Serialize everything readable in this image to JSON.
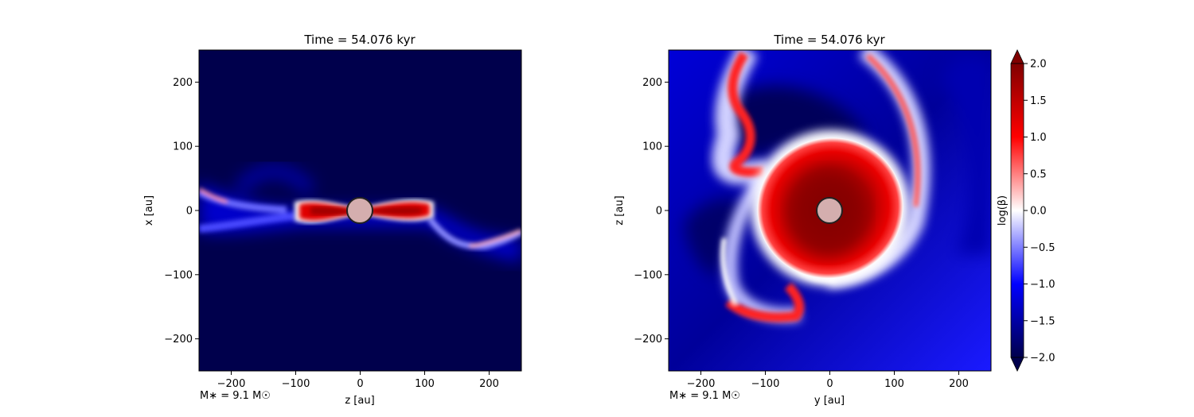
{
  "colormap": {
    "stops": [
      "#00004c",
      "#0000ff",
      "#ffffff",
      "#ff0000",
      "#800000"
    ],
    "star_fill": "#d4aeae",
    "star_stroke": "#222222"
  },
  "chart_data": [
    {
      "type": "heatmap",
      "title": "Time = 54.076 kyr",
      "xlabel": "z [au]",
      "ylabel": "x [au]",
      "xlim": [
        -250,
        250
      ],
      "ylim": [
        -250,
        250
      ],
      "xticks": [
        -200,
        -100,
        0,
        100,
        200
      ],
      "yticks": [
        -200,
        -100,
        0,
        100,
        200
      ],
      "xtick_labels": [
        "−200",
        "−100",
        "0",
        "100",
        "200"
      ],
      "ytick_labels": [
        "−200",
        "−100",
        "0",
        "100",
        "200"
      ],
      "annotation": "M∗ = 9.1 M☉",
      "star": {
        "center": [
          0,
          0
        ],
        "radius_au": 20
      },
      "background_value": -2.0,
      "field": "log(β)",
      "features": [
        {
          "name": "disk (edge-on)",
          "value": 2.0,
          "x": [
            -90,
            105
          ],
          "y": [
            -15,
            15
          ]
        },
        {
          "name": "magnetized outflow band",
          "value": -0.5,
          "x": [
            -250,
            250
          ],
          "y": [
            -60,
            40
          ]
        }
      ]
    },
    {
      "type": "heatmap",
      "title": "Time = 54.076 kyr",
      "xlabel": "y [au]",
      "ylabel": "z [au]",
      "xlim": [
        -250,
        250
      ],
      "ylim": [
        -250,
        250
      ],
      "xticks": [
        -200,
        -100,
        0,
        100,
        200
      ],
      "yticks": [
        -200,
        -100,
        0,
        100,
        200
      ],
      "xtick_labels": [
        "−200",
        "−100",
        "0",
        "100",
        "200"
      ],
      "ytick_labels": [
        "−200",
        "−100",
        "0",
        "100",
        "200"
      ],
      "annotation": "M∗ = 9.1 M☉",
      "star": {
        "center": [
          0,
          0
        ],
        "radius_au": 20
      },
      "background_value": -1.0,
      "field": "log(β)",
      "features": [
        {
          "name": "disk (face-on)",
          "value": 1.7,
          "center": [
            0,
            0
          ],
          "radius_au": [
            85,
            110
          ]
        },
        {
          "name": "spiral arm",
          "value": 1.2,
          "path": [
            [
              -130,
              240
            ],
            [
              -160,
              110
            ],
            [
              -140,
              60
            ]
          ]
        },
        {
          "name": "spiral arm",
          "value": 1.2,
          "path": [
            [
              40,
              245
            ],
            [
              150,
              120
            ],
            [
              140,
              10
            ]
          ]
        },
        {
          "name": "spiral arm",
          "value": 1.2,
          "path": [
            [
              -160,
              -20
            ],
            [
              -110,
              -160
            ],
            [
              -40,
              -170
            ]
          ]
        }
      ]
    }
  ],
  "colorbar": {
    "label": "log(β)",
    "vmin": -2.0,
    "vmax": 2.0,
    "ticks": [
      2.0,
      1.5,
      1.0,
      0.5,
      0.0,
      -0.5,
      -1.0,
      -1.5,
      -2.0
    ],
    "tick_labels": [
      "2.0",
      "1.5",
      "1.0",
      "0.5",
      "0.0",
      "−0.5",
      "−1.0",
      "−1.5",
      "−2.0"
    ],
    "extend": "both"
  }
}
